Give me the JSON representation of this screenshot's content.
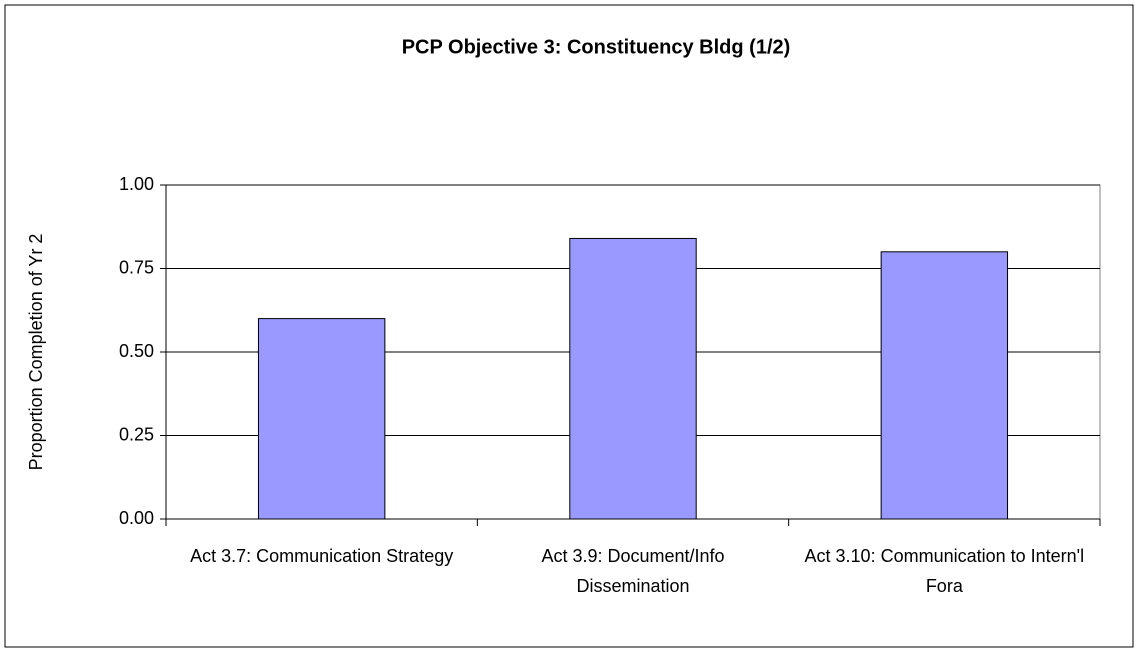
{
  "chart_data": {
    "type": "bar",
    "title": "PCP Objective 3: Constituency Bldg (1/2)",
    "y_label": "Proportion Completion of Yr 2",
    "categories": [
      "Act 3.7: Communication Strategy",
      "Act 3.9: Document/Info Dissemination",
      "Act 3.10: Communication to Intern'l Fora"
    ],
    "values": [
      0.6,
      0.84,
      0.8
    ],
    "color": "#9999ff",
    "ylim": [
      0,
      1
    ],
    "yticks": [
      {
        "value": 0,
        "label": "0.00"
      },
      {
        "value": 0.25,
        "label": "0.25"
      },
      {
        "value": 0.5,
        "label": "0.50"
      },
      {
        "value": 0.75,
        "label": "0.75"
      },
      {
        "value": 1,
        "label": "1.00"
      }
    ],
    "grid": true
  }
}
